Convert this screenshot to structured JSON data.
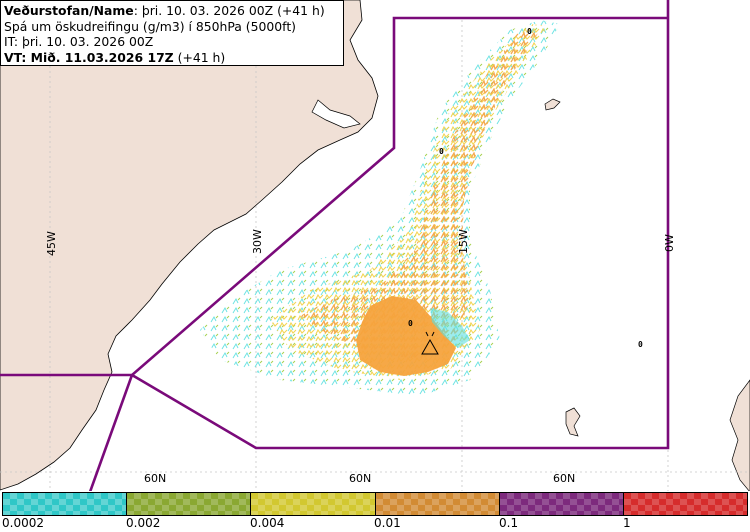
{
  "header": {
    "name_label": "Veðurstofan/Name",
    "name_value": ": þri. 10. 03. 2026 00Z (+41 h)",
    "product": "Spá um öskudreifingu (g/m3) í 850hPa (5000ft)",
    "it_line": "IT: þri. 10. 03. 2026 00Z",
    "vt_label": "VT: Mið. 11.03.2026 17Z",
    "vt_suffix": " (+41 h)"
  },
  "map": {
    "longitude_labels": [
      "45W",
      "30W",
      "15W",
      "0W"
    ],
    "latitude_labels": [
      "60N",
      "60N",
      "60N"
    ],
    "contour_markers": [
      "0",
      "0",
      "0",
      "0"
    ],
    "colors": {
      "land": "#f0e0d6",
      "sea": "#ffffff",
      "boundary": "#7a0a7a",
      "ash_cyan": "#5ee0e0",
      "ash_green": "#9ccc3a",
      "ash_yellow": "#f2d24a",
      "ash_orange": "#f4a64a",
      "ash_dense": "#f5a33d"
    }
  },
  "legend": {
    "tick_labels": [
      "0.0002",
      "0.002",
      "0.004",
      "0.01",
      "0.1",
      "1"
    ],
    "segment_colors": [
      "#2fc7c7",
      "#8aa832",
      "#d2c830",
      "#d28b34",
      "#7d2a7d",
      "#d62c2c"
    ]
  }
}
